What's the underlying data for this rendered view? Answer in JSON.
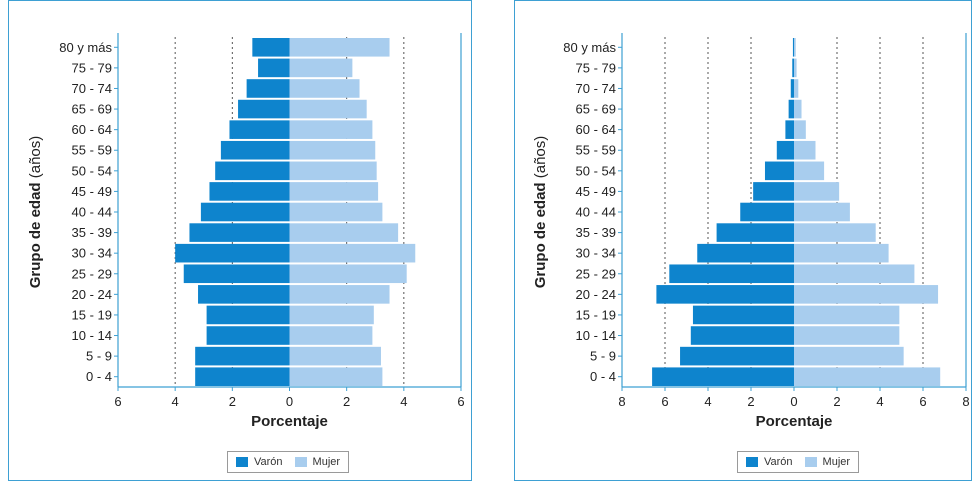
{
  "colors": {
    "male": "#0e84cd",
    "female": "#a8cdee",
    "frame": "#3ea0d3"
  },
  "chart_data": [
    {
      "type": "bar",
      "orientation": "horizontal-population-pyramid",
      "categories": [
        "0 - 4",
        "5 - 9",
        "10 - 14",
        "15 - 19",
        "20 - 24",
        "25 - 29",
        "30 - 34",
        "35 - 39",
        "40 - 44",
        "45 - 49",
        "50 - 54",
        "55 - 59",
        "60 - 64",
        "65 - 69",
        "70 - 74",
        "75 - 79",
        "80 y más"
      ],
      "series": [
        {
          "name": "Varón",
          "values": [
            3.3,
            3.3,
            2.9,
            2.9,
            3.2,
            3.7,
            4.0,
            3.5,
            3.1,
            2.8,
            2.6,
            2.4,
            2.1,
            1.8,
            1.5,
            1.1,
            1.3
          ]
        },
        {
          "name": "Mujer",
          "values": [
            3.25,
            3.2,
            2.9,
            2.95,
            3.5,
            4.1,
            4.4,
            3.8,
            3.25,
            3.1,
            3.05,
            3.0,
            2.9,
            2.7,
            2.45,
            2.2,
            3.5
          ]
        }
      ],
      "xlim": [
        -6,
        6
      ],
      "xticks": [
        "6",
        "4",
        "2",
        "0",
        "2",
        "4",
        "6"
      ],
      "xlabel": "Porcentaje",
      "ylabel_bold": "Grupo de edad",
      "ylabel_normal": "(años)",
      "grid": "vertical-dotted"
    },
    {
      "type": "bar",
      "orientation": "horizontal-population-pyramid",
      "categories": [
        "0 - 4",
        "5 - 9",
        "10 - 14",
        "15 - 19",
        "20 - 24",
        "25 - 29",
        "30 - 34",
        "35 - 39",
        "40 - 44",
        "45 - 49",
        "50 - 54",
        "55 - 59",
        "60 - 64",
        "65 - 69",
        "70 - 74",
        "75 - 79",
        "80 y más"
      ],
      "series": [
        {
          "name": "Varón",
          "values": [
            6.6,
            5.3,
            4.8,
            4.7,
            6.4,
            5.8,
            4.5,
            3.6,
            2.5,
            1.9,
            1.35,
            0.8,
            0.4,
            0.25,
            0.15,
            0.08,
            0.05
          ]
        },
        {
          "name": "Mujer",
          "values": [
            6.8,
            5.1,
            4.9,
            4.9,
            6.7,
            5.6,
            4.4,
            3.8,
            2.6,
            2.1,
            1.4,
            1.0,
            0.55,
            0.35,
            0.2,
            0.12,
            0.08
          ]
        }
      ],
      "xlim": [
        -8,
        8
      ],
      "xticks": [
        "8",
        "6",
        "4",
        "2",
        "0",
        "2",
        "4",
        "6",
        "8"
      ],
      "xlabel": "Porcentaje",
      "ylabel_bold": "Grupo de edad",
      "ylabel_normal": "(años)",
      "grid": "vertical-dotted"
    }
  ],
  "legend": {
    "male_label": "Varón",
    "female_label": "Mujer"
  }
}
